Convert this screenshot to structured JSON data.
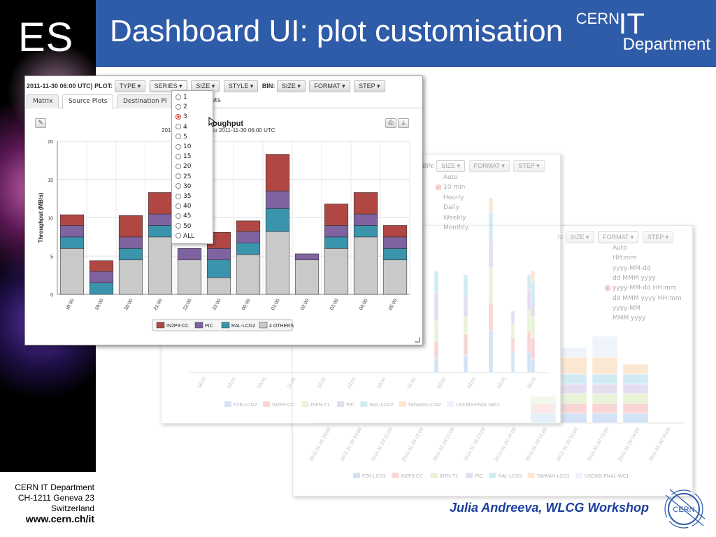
{
  "slide": {
    "logo_text": "ES",
    "title": "Dashboard UI: plot customisation",
    "cern_logo": {
      "cern": "CERN",
      "it": "IT",
      "dept": "Department"
    },
    "footer": {
      "line1": "CERN IT Department",
      "line2": "CH-1211 Geneva 23",
      "line3": "Switzerland",
      "url": "www.cern.ch/it"
    },
    "author": "Julia Andreeva, WLCG Workshop"
  },
  "colors": {
    "header": "#2f5ca8",
    "author": "#1b3f9c",
    "in2p3": "#b04742",
    "pic": "#7e63a0",
    "ral": "#3a94ac",
    "others": "#c9c9c9"
  },
  "main": {
    "toolbar": {
      "date": "2011-11-30 06:00 UTC)",
      "plot_label": "PLOT:",
      "type": "TYPE",
      "series": "SERIES",
      "size": "SIZE",
      "style": "STYLE",
      "bin_label": "BIN:",
      "bin_size": "SIZE",
      "format": "FORMAT",
      "step": "STEP"
    },
    "tabs": [
      "Matrix",
      "Source Plots",
      "Destination Pl",
      "ots"
    ],
    "series_options": [
      "1",
      "2",
      "3",
      "4",
      "5",
      "10",
      "15",
      "20",
      "25",
      "30",
      "35",
      "40",
      "45",
      "50",
      "ALL"
    ],
    "series_selected": "3",
    "plot_title_right": "oughput",
    "plot_subtitle_left": "2011",
    "plot_subtitle_right": "to 2011-11-30 06:00 UTC"
  },
  "mid": {
    "toolbar": {
      "bin_label": "BIN:",
      "size": "SIZE",
      "format": "FORMAT",
      "step": "STEP"
    },
    "bin_options": [
      "Auto",
      "10 min",
      "Hourly",
      "Daily",
      "Weekly",
      "Monthly"
    ],
    "bin_selected": "10 min",
    "x_labels": [
      "18:00",
      "19:00",
      "20:00",
      "21:00",
      "22:00",
      "23:00",
      "00:00",
      "01:00",
      "02:00",
      "03:00",
      "04:00",
      "05:00"
    ],
    "legend": [
      "FZK-LCG2",
      "IN2P3-CC",
      "INFN-T1",
      "PIC",
      "RAL-LCG2",
      "TAIWAN-LCG2",
      "USCMS-FNAL-WC1"
    ]
  },
  "back": {
    "toolbar": {
      "bin_label": "N:",
      "size": "SIZE",
      "format": "FORMAT",
      "step": "STEP"
    },
    "format_options": [
      "Auto",
      "HH:mm",
      "yyyy-MM-dd",
      "dd MMM yyyy",
      "yyyy-MM-dd HH:mm",
      "dd MMM yyyy HH:mm",
      "yyyy-MM",
      "MMM yyyy"
    ],
    "format_selected": "yyyy-MM-dd HH:mm",
    "x_labels": [
      "2011-11-29 18:00",
      "2011-11-29 19:00",
      "2011-11-29 20:00",
      "2011-11-29 21:00",
      "2011-11-29 22:00",
      "2011-11-29 23:00",
      "2011-11-30 00:00",
      "2011-11-30 01:00",
      "2011-11-30 02:00",
      "2011-11-30 03:00",
      "2011-11-30 04:00",
      "2011-11-30 05:00"
    ],
    "legend": [
      "FZK-LCG2",
      "IN2P3-CC",
      "INFN-T1",
      "PIC",
      "RAL-LCG2",
      "TAIWAN-LCG2",
      "USCMS-FNAL-WC1"
    ]
  },
  "chart_data": {
    "type": "bar",
    "title": "",
    "xlabel": "",
    "ylabel": "Throughput (MB/s)",
    "ylim": [
      0,
      20
    ],
    "yticks": [
      0,
      5,
      10,
      15,
      20
    ],
    "categories": [
      "18:00",
      "19:00",
      "20:00",
      "21:00",
      "22:00",
      "23:00",
      "00:00",
      "01:00",
      "02:00",
      "03:00",
      "04:00",
      "05:00"
    ],
    "series": [
      {
        "name": "4 OTHERS",
        "color": "#c9c9c9",
        "values": [
          6.0,
          0.0,
          4.5,
          7.5,
          4.5,
          2.2,
          5.2,
          8.2,
          4.5,
          6.0,
          7.5,
          4.5
        ]
      },
      {
        "name": "RAL-LCG2",
        "color": "#3a94ac",
        "values": [
          1.5,
          1.5,
          1.5,
          1.5,
          0.0,
          2.3,
          1.5,
          3.0,
          0.0,
          1.5,
          1.5,
          1.5
        ]
      },
      {
        "name": "PIC",
        "color": "#7e63a0",
        "values": [
          1.5,
          1.5,
          1.5,
          1.5,
          1.5,
          1.5,
          1.5,
          2.3,
          0.8,
          1.5,
          1.5,
          1.5
        ]
      },
      {
        "name": "IN2P3-CC",
        "color": "#b04742",
        "values": [
          1.4,
          1.4,
          2.8,
          2.8,
          0.0,
          2.1,
          1.4,
          4.8,
          0.0,
          2.8,
          2.8,
          1.5
        ]
      }
    ],
    "legend": [
      "IN2P3-CC",
      "PIC",
      "RAL-LCG2",
      "4 OTHERS"
    ]
  }
}
